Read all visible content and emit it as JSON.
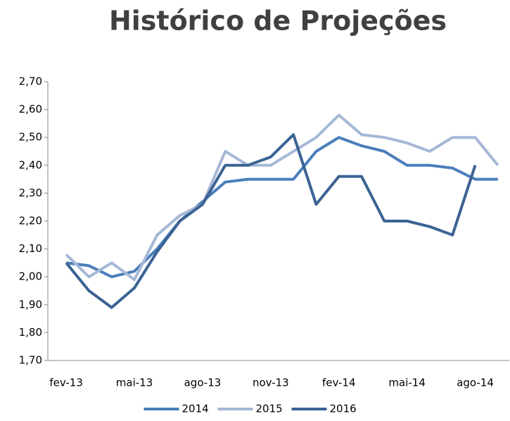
{
  "chart_data": {
    "type": "line",
    "title": "Histórico de Projeções",
    "categories": [
      "fev-13",
      null,
      null,
      "mai-13",
      null,
      null,
      "ago-13",
      null,
      null,
      "nov-13",
      null,
      null,
      "fev-14",
      null,
      null,
      "mai-14",
      null,
      null,
      "ago-14",
      null
    ],
    "series": [
      {
        "name": "2014",
        "color": "#4a7ebb",
        "values": [
          2.05,
          2.04,
          2.0,
          2.02,
          2.1,
          2.2,
          2.27,
          2.34,
          2.35,
          2.35,
          2.35,
          2.45,
          2.5,
          2.47,
          2.45,
          2.4,
          2.4,
          2.39,
          2.35,
          2.35
        ]
      },
      {
        "name": "2015",
        "color": "#a6b8d6",
        "values": [
          2.08,
          2.0,
          2.05,
          1.99,
          2.15,
          2.22,
          2.26,
          2.45,
          2.4,
          2.4,
          2.45,
          2.5,
          2.58,
          2.51,
          2.5,
          2.48,
          2.45,
          2.5,
          2.5,
          2.4
        ]
      },
      {
        "name": "2016",
        "color": "#3b6394",
        "values": [
          2.05,
          1.95,
          1.89,
          1.96,
          2.09,
          2.2,
          2.26,
          2.4,
          2.4,
          2.43,
          2.51,
          2.26,
          2.36,
          2.36,
          2.2,
          2.2,
          2.18,
          2.15,
          2.4,
          null
        ]
      }
    ],
    "ylim": [
      1.7,
      2.7
    ],
    "yticks": [
      {
        "value": 1.7,
        "label": "1,70"
      },
      {
        "value": 1.8,
        "label": "1,80"
      },
      {
        "value": 1.9,
        "label": "1,90"
      },
      {
        "value": 2.0,
        "label": "2,00"
      },
      {
        "value": 2.1,
        "label": "2,10"
      },
      {
        "value": 2.2,
        "label": "2,20"
      },
      {
        "value": 2.3,
        "label": "2,30"
      },
      {
        "value": 2.4,
        "label": "2,40"
      },
      {
        "value": 2.5,
        "label": "2,50"
      },
      {
        "value": 2.6,
        "label": "2,60"
      },
      {
        "value": 2.7,
        "label": "2,70"
      }
    ],
    "legend": "bottom"
  }
}
